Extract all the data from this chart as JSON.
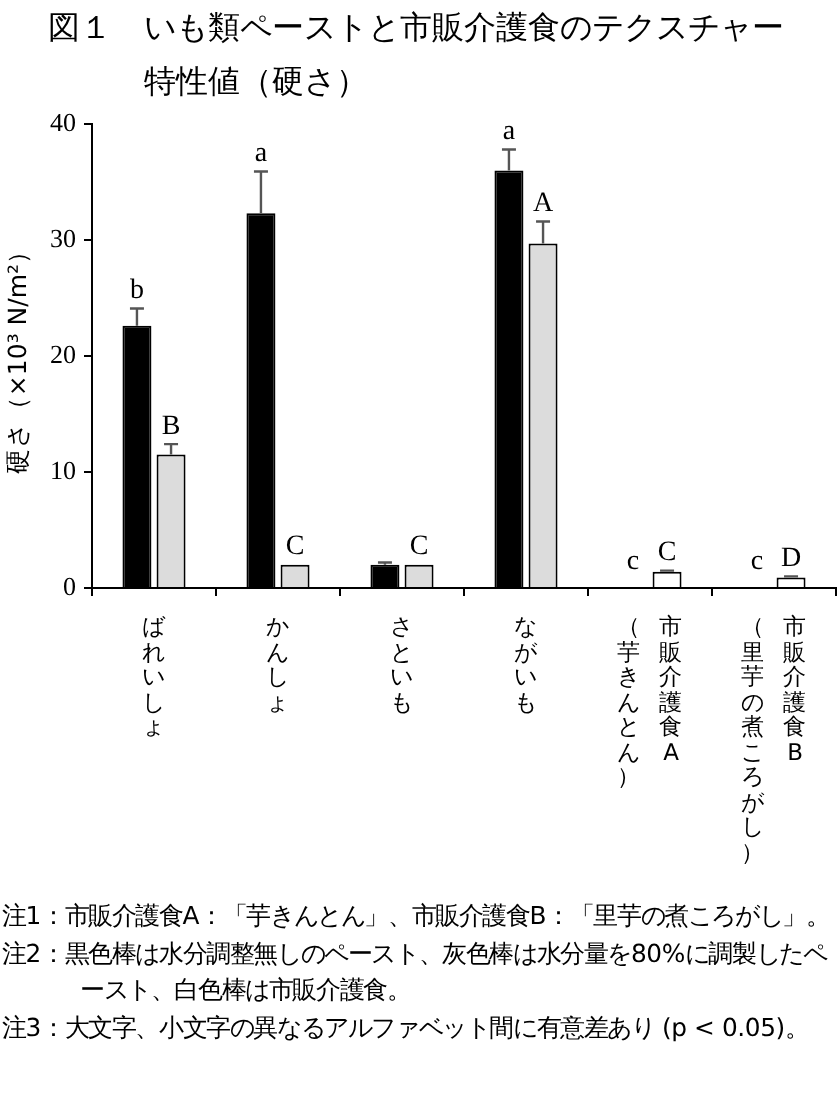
{
  "chart_data": {
    "type": "bar",
    "title": "図１　いも類ペーストと市販介護食のテクスチャー特性値（硬さ）",
    "ylabel": "硬さ（×10³ N/m²）",
    "categories": [
      "ばれいしょ",
      "かんしょ",
      "さといも",
      "ながいも",
      "市販介護食A\n（芋きんとん）",
      "市販介護食B\n（里芋の煮ころがし）"
    ],
    "series": [
      {
        "color": "#000000",
        "values": [
          22.6,
          32.3,
          2.0,
          36.0,
          null,
          null
        ],
        "errors": [
          [
            22.6,
            24.1
          ],
          [
            32.3,
            35.9
          ],
          [
            2.0,
            2.2
          ],
          [
            36.0,
            37.8
          ],
          null,
          null
        ],
        "value_labels": [
          "b",
          "a",
          null,
          "a",
          "c",
          "c"
        ]
      },
      {
        "colors": [
          "#dcdcdc",
          "#dcdcdc",
          "#dcdcdc",
          "#dcdcdc",
          "#ffffff",
          "#ffffff"
        ],
        "values": [
          11.5,
          2.0,
          2.0,
          29.7,
          1.4,
          0.9
        ],
        "errors": [
          [
            11.5,
            12.4
          ],
          null,
          null,
          [
            29.7,
            31.6
          ],
          [
            1.4,
            1.5
          ],
          [
            0.9,
            1.0
          ]
        ],
        "value_labels": [
          "B",
          "C",
          "C",
          "A",
          "C",
          "D"
        ]
      }
    ],
    "ylim": [
      0,
      40
    ],
    "yticks": [
      0,
      10,
      20,
      30,
      40
    ],
    "annotations": [
      "注1：市販介護食A：「芋きんとん」、市販介護食B：「里芋の煮ころがし」。",
      "注2：黒色棒は水分調整無しのペースト、灰色棒は水分量を80%に調製したペースト、白色棒は市販介護食。",
      "注3：大文字、小文字の異なるアルファベット間に有意差あり (p < 0.05)。"
    ]
  }
}
